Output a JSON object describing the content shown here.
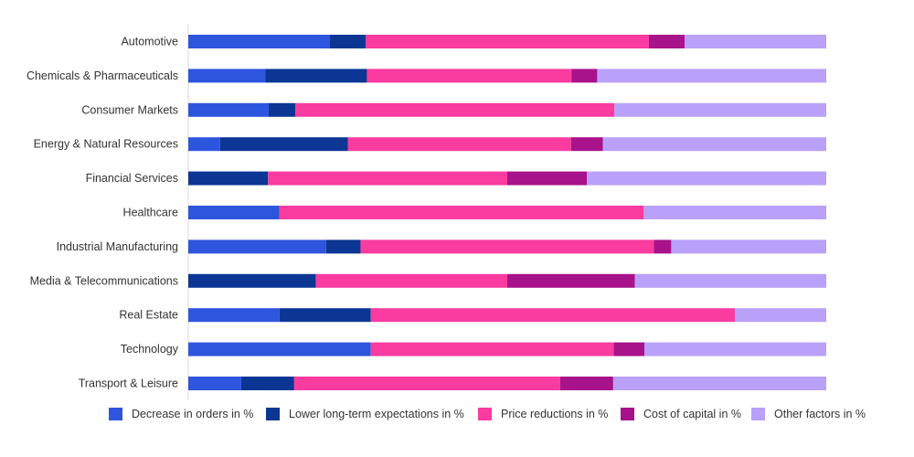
{
  "chart_data": {
    "type": "bar",
    "orientation": "horizontal",
    "stacked": true,
    "normalized_to": 100,
    "categories": [
      "Automotive",
      "Chemicals & Pharmaceuticals",
      "Consumer Markets",
      "Energy & Natural Resources",
      "Financial Services",
      "Healthcare",
      "Industrial Manufacturing",
      "Media & Telecommunications",
      "Real Estate",
      "Technology",
      "Transport & Leisure"
    ],
    "series": [
      {
        "name": "Decrease in orders in %",
        "color": "#2e55de",
        "values": [
          22.2,
          12.1,
          12.6,
          5.0,
          0,
          14.3,
          21.6,
          0,
          14.3,
          28.6,
          8.3
        ]
      },
      {
        "name": "Lower long-term expectations in %",
        "color": "#0c3694",
        "values": [
          5.6,
          15.9,
          4.2,
          20.0,
          12.5,
          0,
          5.4,
          20.0,
          14.3,
          0,
          8.3
        ]
      },
      {
        "name": "Price reductions in %",
        "color": "#fa3ba0",
        "values": [
          44.4,
          32.1,
          50.0,
          35.0,
          37.5,
          57.1,
          46.0,
          30.0,
          57.1,
          38.1,
          41.7
        ]
      },
      {
        "name": "Cost of capital in %",
        "color": "#a8128a",
        "values": [
          5.6,
          4.0,
          0,
          5.0,
          12.5,
          0,
          2.7,
          20.0,
          0,
          4.8,
          8.3
        ]
      },
      {
        "name": "Other factors in %",
        "color": "#b9a0f8",
        "values": [
          22.2,
          35.9,
          33.2,
          35.0,
          37.5,
          28.6,
          24.3,
          30.0,
          14.3,
          28.5,
          33.4
        ]
      }
    ],
    "xlim": [
      0,
      100
    ],
    "grid": false,
    "legend_position": "bottom"
  }
}
